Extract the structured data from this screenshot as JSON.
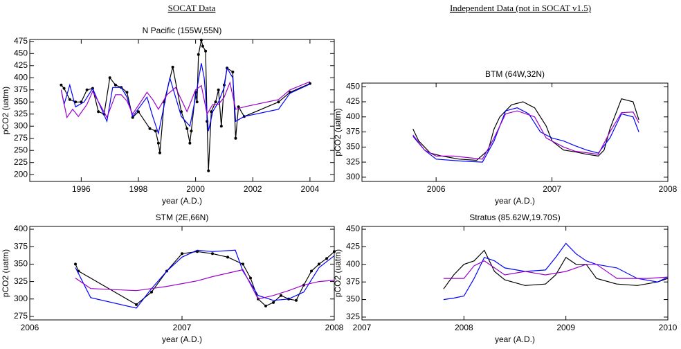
{
  "headers": {
    "left": "SOCAT Data",
    "right": "Independent Data (not in SOCAT v1.5)"
  },
  "chart_data": [
    {
      "type": "line",
      "title": "N Pacific (155W,55N)",
      "xlabel": "year (A.D.)",
      "ylabel": "pCO2 (uatm)",
      "xlim": [
        1994.2,
        2004.85
      ],
      "ylim": [
        186,
        479
      ],
      "xticks": [
        1996,
        1998,
        2000,
        2002,
        2004
      ],
      "yticks": [
        200,
        225,
        250,
        275,
        300,
        325,
        350,
        375,
        400,
        425,
        450,
        475
      ],
      "series": [
        {
          "color": "#000000",
          "markers": true,
          "x": [
            1995.3,
            1995.4,
            1995.6,
            1995.8,
            1996.0,
            1996.2,
            1996.4,
            1996.6,
            1996.8,
            1997.0,
            1997.2,
            1997.4,
            1997.6,
            1997.8,
            1998.0,
            1998.4,
            1998.6,
            1998.7,
            1998.75,
            1998.9,
            1999.2,
            1999.5,
            1999.7,
            1999.8,
            1999.85,
            2000.0,
            2000.05,
            2000.1,
            2000.2,
            2000.25,
            2000.35,
            2000.4,
            2000.45,
            2000.55,
            2000.7,
            2000.8,
            2000.9,
            2001.0,
            2001.1,
            2001.3,
            2001.4,
            2001.5,
            2001.7,
            2002.9,
            2003.3,
            2004.0
          ],
          "values": [
            385,
            378,
            355,
            350,
            350,
            375,
            378,
            330,
            325,
            400,
            385,
            380,
            370,
            318,
            330,
            295,
            290,
            265,
            245,
            350,
            422,
            330,
            295,
            265,
            290,
            370,
            350,
            448,
            478,
            465,
            455,
            310,
            208,
            330,
            350,
            375,
            300,
            385,
            420,
            412,
            275,
            340,
            320,
            350,
            370,
            388
          ]
        },
        {
          "color": "#0000ff",
          "x": [
            1995.3,
            1995.4,
            1995.6,
            1995.8,
            1996.1,
            1996.4,
            1996.6,
            1996.9,
            1997.1,
            1997.4,
            1997.6,
            1997.8,
            1998.3,
            1998.5,
            1998.7,
            1999.1,
            1999.5,
            1999.8,
            2000.0,
            2000.2,
            2000.3,
            2000.45,
            2000.6,
            2000.8,
            2001.0,
            2001.1,
            2001.3,
            2001.4,
            2001.7,
            2002.9,
            2003.3,
            2004.0
          ],
          "values": [
            375,
            345,
            385,
            340,
            350,
            378,
            350,
            310,
            380,
            380,
            360,
            320,
            360,
            320,
            285,
            400,
            320,
            300,
            360,
            430,
            400,
            290,
            330,
            350,
            380,
            420,
            400,
            310,
            320,
            335,
            368,
            387
          ]
        },
        {
          "color": "#9900cc",
          "x": [
            1995.3,
            1995.5,
            1995.7,
            1995.9,
            1996.2,
            1996.4,
            1996.7,
            1996.9,
            1997.2,
            1997.4,
            1997.6,
            1997.8,
            1998.3,
            1998.5,
            1998.7,
            1999.0,
            1999.3,
            1999.7,
            2000.0,
            2000.2,
            2000.4,
            2000.6,
            2000.8,
            2001.0,
            2001.2,
            2001.4,
            2001.7,
            2002.9,
            2003.3,
            2004.0
          ],
          "values": [
            375,
            318,
            335,
            320,
            345,
            372,
            340,
            318,
            365,
            365,
            352,
            325,
            370,
            355,
            335,
            365,
            380,
            330,
            375,
            384,
            325,
            345,
            345,
            360,
            390,
            335,
            340,
            355,
            375,
            392
          ]
        }
      ]
    },
    {
      "type": "line",
      "title": "BTM (64W,32N)",
      "xlabel": "year (A.D.)",
      "ylabel": "pCO2 (uatm)",
      "xlim": [
        2005.36,
        2008
      ],
      "ylim": [
        293,
        456
      ],
      "xticks": [
        2006,
        2007,
        2008
      ],
      "yticks": [
        300,
        325,
        350,
        375,
        400,
        425,
        450
      ],
      "series": [
        {
          "color": "#000000",
          "x": [
            2005.8,
            2005.85,
            2005.95,
            2006.05,
            2006.2,
            2006.35,
            2006.45,
            2006.5,
            2006.55,
            2006.65,
            2006.75,
            2006.85,
            2006.95,
            2007.0,
            2007.1,
            2007.2,
            2007.3,
            2007.4,
            2007.45,
            2007.5,
            2007.55,
            2007.6,
            2007.7,
            2007.75
          ],
          "values": [
            380,
            360,
            340,
            335,
            330,
            328,
            345,
            380,
            400,
            420,
            425,
            415,
            385,
            360,
            345,
            342,
            338,
            335,
            345,
            380,
            405,
            430,
            425,
            395
          ]
        },
        {
          "color": "#0000ff",
          "x": [
            2005.8,
            2005.9,
            2006.0,
            2006.2,
            2006.4,
            2006.5,
            2006.6,
            2006.7,
            2006.8,
            2006.9,
            2007.0,
            2007.1,
            2007.2,
            2007.3,
            2007.4,
            2007.5,
            2007.6,
            2007.7,
            2007.75
          ],
          "values": [
            368,
            345,
            330,
            327,
            325,
            360,
            410,
            415,
            405,
            375,
            365,
            360,
            352,
            345,
            340,
            365,
            405,
            400,
            375
          ]
        },
        {
          "color": "#9900cc",
          "x": [
            2005.8,
            2005.9,
            2006.0,
            2006.15,
            2006.4,
            2006.5,
            2006.6,
            2006.7,
            2006.85,
            2006.95,
            2007.1,
            2007.2,
            2007.4,
            2007.5,
            2007.6,
            2007.7,
            2007.75
          ],
          "values": [
            370,
            345,
            335,
            335,
            330,
            365,
            405,
            410,
            400,
            365,
            350,
            343,
            338,
            375,
            407,
            408,
            390
          ]
        }
      ]
    },
    {
      "type": "line",
      "title": "STM (2E,66N)",
      "xlabel": "year (A.D.)",
      "ylabel": "pCO2 (uatm)",
      "xlim": [
        2006,
        2008
      ],
      "ylim": [
        270,
        404
      ],
      "xticks": [
        2006,
        2007,
        2008
      ],
      "yticks": [
        275,
        300,
        325,
        350,
        375,
        400
      ],
      "series": [
        {
          "color": "#000000",
          "markers": true,
          "x": [
            2006.3,
            2006.32,
            2006.7,
            2006.8,
            2006.9,
            2007.0,
            2007.1,
            2007.2,
            2007.3,
            2007.4,
            2007.45,
            2007.5,
            2007.55,
            2007.6,
            2007.65,
            2007.7,
            2007.75,
            2007.8,
            2007.85,
            2007.9,
            2007.95,
            2008.0
          ],
          "values": [
            350,
            340,
            292,
            310,
            340,
            365,
            368,
            365,
            360,
            350,
            330,
            300,
            290,
            295,
            305,
            300,
            298,
            320,
            340,
            350,
            358,
            368
          ]
        },
        {
          "color": "#0000ff",
          "x": [
            2006.3,
            2006.4,
            2006.7,
            2006.8,
            2006.9,
            2007.0,
            2007.1,
            2007.2,
            2007.35,
            2007.4,
            2007.5,
            2007.6,
            2007.7,
            2007.8,
            2007.9,
            2008.0
          ],
          "values": [
            345,
            302,
            287,
            315,
            340,
            360,
            370,
            368,
            370,
            340,
            305,
            298,
            300,
            310,
            345,
            362
          ]
        },
        {
          "color": "#9900cc",
          "x": [
            2006.3,
            2006.4,
            2006.7,
            2006.8,
            2006.9,
            2007.0,
            2007.1,
            2007.2,
            2007.3,
            2007.4,
            2007.5,
            2007.6,
            2007.7,
            2007.8,
            2007.9,
            2008.0
          ],
          "values": [
            330,
            315,
            312,
            315,
            318,
            322,
            326,
            332,
            337,
            342,
            300,
            305,
            312,
            320,
            325,
            327
          ]
        }
      ]
    },
    {
      "type": "line",
      "title": "Stratus (85.62W,19.70S)",
      "xlabel": "year (A.D.)",
      "ylabel": "pCO2 (uatm)",
      "xlim": [
        2007,
        2010
      ],
      "ylim": [
        321,
        454
      ],
      "xticks": [
        2007,
        2008,
        2009,
        2010
      ],
      "yticks": [
        325,
        350,
        375,
        400,
        425,
        450
      ],
      "series": [
        {
          "color": "#000000",
          "x": [
            2007.8,
            2007.9,
            2008.0,
            2008.1,
            2008.2,
            2008.3,
            2008.4,
            2008.6,
            2008.8,
            2008.9,
            2009.0,
            2009.1,
            2009.2,
            2009.3,
            2009.5,
            2009.7,
            2009.9,
            2010.0
          ],
          "values": [
            365,
            385,
            400,
            405,
            420,
            390,
            378,
            370,
            372,
            385,
            410,
            400,
            400,
            380,
            372,
            370,
            375,
            380
          ]
        },
        {
          "color": "#0000ff",
          "x": [
            2007.8,
            2007.9,
            2008.0,
            2008.1,
            2008.2,
            2008.3,
            2008.4,
            2008.6,
            2008.8,
            2008.9,
            2009.0,
            2009.1,
            2009.2,
            2009.3,
            2009.5,
            2009.7,
            2009.9,
            2010.0
          ],
          "values": [
            350,
            352,
            355,
            380,
            410,
            405,
            395,
            390,
            392,
            410,
            430,
            415,
            405,
            400,
            395,
            380,
            375,
            382
          ]
        },
        {
          "color": "#9900cc",
          "x": [
            2007.8,
            2008.0,
            2008.1,
            2008.2,
            2008.4,
            2008.6,
            2008.8,
            2009.0,
            2009.2,
            2009.3,
            2009.5,
            2009.8,
            2010.0
          ],
          "values": [
            380,
            380,
            398,
            405,
            385,
            390,
            385,
            390,
            400,
            400,
            380,
            380,
            382
          ]
        }
      ]
    }
  ]
}
